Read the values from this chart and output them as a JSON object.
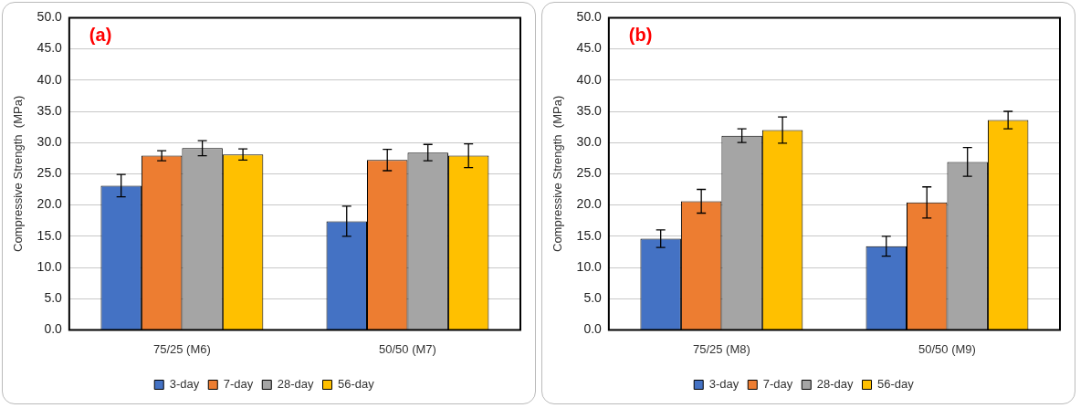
{
  "chart_data": [
    {
      "type": "bar",
      "ylabel": "Compressive Strength  (MPa)",
      "annotations": [
        "(a)"
      ],
      "categories": [
        "75/25 (M6)",
        "50/50 (M7)"
      ],
      "ylim": [
        0,
        50
      ],
      "yticks": [
        {
          "value": 0,
          "label": "0.0"
        },
        {
          "value": 5,
          "label": "5.0"
        },
        {
          "value": 10,
          "label": "10.0"
        },
        {
          "value": 15,
          "label": "15.0"
        },
        {
          "value": 20,
          "label": "20.0"
        },
        {
          "value": 25,
          "label": "25.0"
        },
        {
          "value": 30,
          "label": "30.0"
        },
        {
          "value": 35,
          "label": "35.0"
        },
        {
          "value": 40,
          "label": "40.0"
        },
        {
          "value": 45,
          "label": "45.0"
        },
        {
          "value": 50,
          "label": "50.0"
        }
      ],
      "grid": "y",
      "legend": "bottom",
      "series": [
        {
          "name": "3-day",
          "color": "#4472c4",
          "values": [
            23.1,
            17.4
          ],
          "errors": [
            1.8,
            2.4
          ]
        },
        {
          "name": "7-day",
          "color": "#ed7d31",
          "values": [
            27.9,
            27.2
          ],
          "errors": [
            0.8,
            1.7
          ]
        },
        {
          "name": "28-day",
          "color": "#a5a5a5",
          "values": [
            29.1,
            28.4
          ],
          "errors": [
            1.2,
            1.3
          ]
        },
        {
          "name": "56-day",
          "color": "#ffc000",
          "values": [
            28.1,
            27.9
          ],
          "errors": [
            0.9,
            1.9
          ]
        }
      ]
    },
    {
      "type": "bar",
      "ylabel": "Compressive Strength  (MPa)",
      "annotations": [
        "(b)"
      ],
      "categories": [
        "75/25 (M8)",
        "50/50 (M9)"
      ],
      "ylim": [
        0,
        50
      ],
      "yticks": [
        {
          "value": 0,
          "label": "0.0"
        },
        {
          "value": 5,
          "label": "5.0"
        },
        {
          "value": 10,
          "label": "10.0"
        },
        {
          "value": 15,
          "label": "15.0"
        },
        {
          "value": 20,
          "label": "20.0"
        },
        {
          "value": 25,
          "label": "25.0"
        },
        {
          "value": 30,
          "label": "30.0"
        },
        {
          "value": 35,
          "label": "35.0"
        },
        {
          "value": 40,
          "label": "40.0"
        },
        {
          "value": 45,
          "label": "45.0"
        },
        {
          "value": 50,
          "label": "50.0"
        }
      ],
      "grid": "y",
      "legend": "bottom",
      "series": [
        {
          "name": "3-day",
          "color": "#4472c4",
          "values": [
            14.6,
            13.4
          ],
          "errors": [
            1.4,
            1.6
          ]
        },
        {
          "name": "7-day",
          "color": "#ed7d31",
          "values": [
            20.6,
            20.4
          ],
          "errors": [
            1.9,
            2.5
          ]
        },
        {
          "name": "28-day",
          "color": "#a5a5a5",
          "values": [
            31.1,
            26.9
          ],
          "errors": [
            1.1,
            2.3
          ]
        },
        {
          "name": "56-day",
          "color": "#ffc000",
          "values": [
            32.0,
            33.6
          ],
          "errors": [
            2.1,
            1.4
          ]
        }
      ]
    }
  ]
}
